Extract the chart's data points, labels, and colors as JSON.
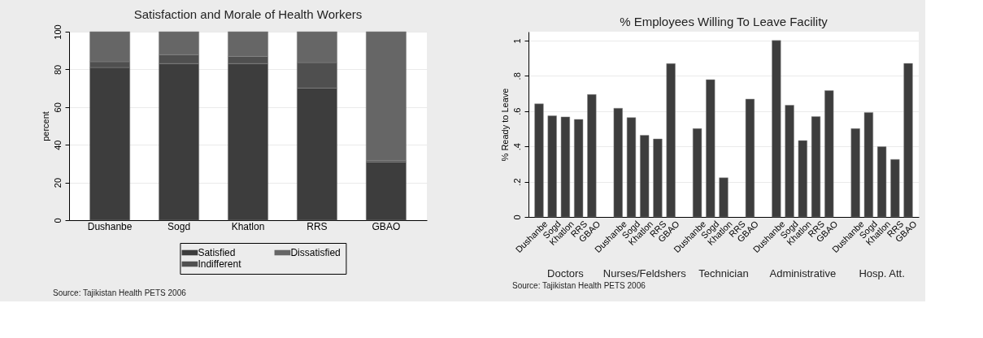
{
  "chart_data": [
    {
      "type": "bar",
      "title": "Satisfaction and Morale of Health Workers",
      "ylabel": "percent",
      "categories": [
        "Dushanbe",
        "Sogd",
        "Khatlon",
        "RRS",
        "GBAO"
      ],
      "stacked": true,
      "series": [
        {
          "name": "Satisfied",
          "color": "#3d3d3d",
          "values": [
            81.0,
            83.1,
            83.1,
            70.1,
            30.8
          ]
        },
        {
          "name": "Indifferent",
          "color": "#4f4f4f",
          "values": [
            3.1,
            4.7,
            3.8,
            13.5,
            0.8
          ]
        },
        {
          "name": "Dissatisfied",
          "color": "#666666",
          "values": [
            15.9,
            12.2,
            13.1,
            16.4,
            68.4
          ]
        }
      ],
      "ylim": [
        0,
        100
      ],
      "yticks": [
        0,
        20,
        40,
        60,
        80,
        100
      ],
      "grid": "y",
      "legend": "bottom",
      "annotations": [
        "Source: Tajikistan Health PETS 2006"
      ]
    },
    {
      "type": "bar",
      "title": "% Employees Willing To Leave Facility",
      "ylabel": "% Ready to Leave",
      "categories": [
        "Dushanbe",
        "Sogd",
        "Khatlon",
        "RRS",
        "GBAO",
        "Dushanbe",
        "Sogd",
        "Khatlon",
        "RRS",
        "GBAO",
        "Dushanbe",
        "Sogd",
        "Khatlon",
        "RRS",
        "GBAO",
        "Dushanbe",
        "Sogd",
        "Khatlon",
        "RRS",
        "GBAO",
        "Dushanbe",
        "Sogd",
        "Khatlon",
        "RRS",
        "GBAO"
      ],
      "series": [
        {
          "color": "#3d3d3d",
          "values": [
            0.641,
            0.573,
            0.567,
            0.553,
            0.694,
            0.616,
            0.563,
            0.463,
            0.442,
            0.869,
            0.501,
            0.778,
            0.222,
            null,
            0.668,
            1.0,
            0.633,
            0.433,
            0.569,
            0.716,
            0.501,
            0.592,
            0.398,
            0.326,
            0.87
          ]
        }
      ],
      "ylim": [
        0,
        1.05
      ],
      "yticks": [
        0,
        {
          "value": 0.2,
          "label": ".2"
        },
        {
          "value": 0.4,
          "label": ".4"
        },
        {
          "value": 0.6,
          "label": ".6"
        },
        {
          "value": 0.8,
          "label": ".8"
        },
        1
      ],
      "grid": "y",
      "annotations": [
        "Doctors",
        "Nurses/Feldshers",
        "Technician",
        "Administrative",
        "Hosp. Att.",
        "Source: Tajikistan Health PETS 2006"
      ]
    }
  ]
}
